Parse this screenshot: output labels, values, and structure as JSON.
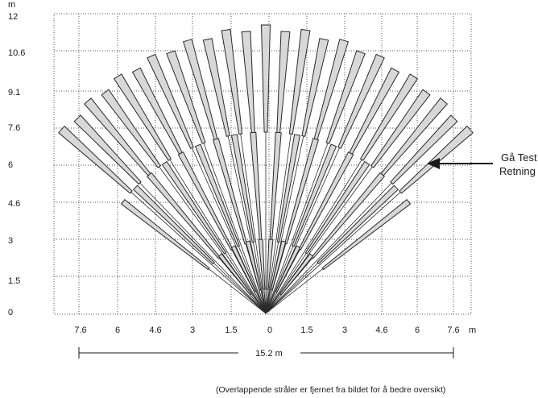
{
  "diagram": {
    "y_unit": "m",
    "x_unit": "m",
    "y_ticks": [
      "0",
      "1.5",
      "3",
      "4.6",
      "6",
      "7.6",
      "9.1",
      "10.6",
      "12"
    ],
    "x_ticks": [
      "7.6",
      "6",
      "4.6",
      "3",
      "1.5",
      "0",
      "1.5",
      "3",
      "4.6",
      "6",
      "7.6"
    ],
    "width_label": "15.2 m",
    "walk_test_label_line1": "Gå Test",
    "walk_test_label_line2": "Retning",
    "footnote": "(Overlappende stråler er fjernet fra bildet for å bedre oversikt)",
    "colors": {
      "beam_fill": "#d8d8d8",
      "beam_stroke": "#2a2a2a",
      "grid": "#555555"
    }
  }
}
